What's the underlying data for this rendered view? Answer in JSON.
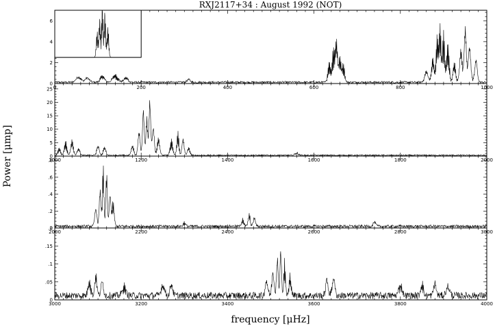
{
  "chart_data": {
    "type": "line",
    "title": "RXJ2117+34 :  August 1992 (NOT)",
    "xlabel": "frequency [μHz]",
    "ylabel": "Power [μmp]",
    "grid": false,
    "panels": [
      {
        "name": "panel-1",
        "xlim": [
          0,
          1000
        ],
        "ylim": [
          0,
          7
        ],
        "xticks": [
          0,
          200,
          400,
          600,
          800,
          1000
        ],
        "yticks": [
          0,
          2,
          4,
          6
        ],
        "ytick_labels": [
          "0",
          "2",
          "4",
          "6"
        ],
        "baseline": 0.12,
        "peaks": [
          {
            "f": 55,
            "a": 0.6,
            "w": 6
          },
          {
            "f": 75,
            "a": 0.5,
            "w": 5
          },
          {
            "f": 110,
            "a": 0.7,
            "w": 5
          },
          {
            "f": 140,
            "a": 0.8,
            "w": 6
          },
          {
            "f": 165,
            "a": 0.5,
            "w": 5
          },
          {
            "f": 310,
            "a": 0.3,
            "w": 4
          },
          {
            "f": 635,
            "a": 2.0,
            "w": 3
          },
          {
            "f": 645,
            "a": 3.3,
            "w": 3
          },
          {
            "f": 652,
            "a": 4.2,
            "w": 2.5
          },
          {
            "f": 660,
            "a": 2.5,
            "w": 3
          },
          {
            "f": 668,
            "a": 1.8,
            "w": 3
          },
          {
            "f": 860,
            "a": 1.2,
            "w": 4
          },
          {
            "f": 875,
            "a": 2.5,
            "w": 3
          },
          {
            "f": 885,
            "a": 4.5,
            "w": 2.5
          },
          {
            "f": 892,
            "a": 5.6,
            "w": 2.5
          },
          {
            "f": 900,
            "a": 5.0,
            "w": 2.5
          },
          {
            "f": 910,
            "a": 3.8,
            "w": 3
          },
          {
            "f": 925,
            "a": 2.0,
            "w": 3
          },
          {
            "f": 940,
            "a": 3.5,
            "w": 3
          },
          {
            "f": 950,
            "a": 6.0,
            "w": 2.5
          },
          {
            "f": 960,
            "a": 4.0,
            "w": 3
          },
          {
            "f": 975,
            "a": 2.5,
            "w": 3
          }
        ],
        "inset": {
          "xlim": [
            0,
            200
          ],
          "ylim": [
            2.5,
            7
          ],
          "peaks": [
            {
              "f": 98,
              "a": 2.5,
              "w": 2
            },
            {
              "f": 104,
              "a": 3.8,
              "w": 1.8
            },
            {
              "f": 110,
              "a": 6.2,
              "w": 1.5
            },
            {
              "f": 116,
              "a": 4.5,
              "w": 1.8
            },
            {
              "f": 123,
              "a": 3.0,
              "w": 2
            }
          ]
        }
      },
      {
        "name": "panel-2",
        "xlim": [
          1000,
          2000
        ],
        "ylim": [
          0,
          27
        ],
        "xticks": [
          1000,
          1200,
          1400,
          1600,
          1800,
          2000
        ],
        "yticks": [
          0,
          5,
          10,
          15,
          20,
          25
        ],
        "ytick_labels": [
          "0",
          "5",
          "10",
          "15",
          "20",
          "25"
        ],
        "baseline": 0.3,
        "peaks": [
          {
            "f": 1010,
            "a": 3,
            "w": 3
          },
          {
            "f": 1025,
            "a": 5.5,
            "w": 3
          },
          {
            "f": 1040,
            "a": 6,
            "w": 3
          },
          {
            "f": 1055,
            "a": 3,
            "w": 3
          },
          {
            "f": 1100,
            "a": 4,
            "w": 3
          },
          {
            "f": 1115,
            "a": 3.5,
            "w": 3
          },
          {
            "f": 1180,
            "a": 4,
            "w": 3
          },
          {
            "f": 1195,
            "a": 10,
            "w": 2.5
          },
          {
            "f": 1205,
            "a": 20,
            "w": 2
          },
          {
            "f": 1213,
            "a": 16,
            "w": 2
          },
          {
            "f": 1220,
            "a": 24,
            "w": 2
          },
          {
            "f": 1228,
            "a": 12,
            "w": 2.5
          },
          {
            "f": 1240,
            "a": 7,
            "w": 3
          },
          {
            "f": 1270,
            "a": 6,
            "w": 3
          },
          {
            "f": 1285,
            "a": 9,
            "w": 2.5
          },
          {
            "f": 1297,
            "a": 7,
            "w": 2.5
          },
          {
            "f": 1310,
            "a": 3,
            "w": 3
          },
          {
            "f": 1560,
            "a": 1,
            "w": 4
          }
        ]
      },
      {
        "name": "panel-3",
        "xlim": [
          2000,
          3000
        ],
        "ylim": [
          0,
          0.85
        ],
        "xticks": [
          2000,
          2200,
          2400,
          2600,
          2800,
          3000
        ],
        "yticks": [
          0,
          0.2,
          0.4,
          0.6,
          0.8
        ],
        "ytick_labels": [
          "0",
          ".2",
          ".4",
          ".6",
          ".8"
        ],
        "baseline": 0.02,
        "peaks": [
          {
            "f": 2095,
            "a": 0.25,
            "w": 2.5
          },
          {
            "f": 2105,
            "a": 0.5,
            "w": 2
          },
          {
            "f": 2112,
            "a": 0.78,
            "w": 1.8
          },
          {
            "f": 2120,
            "a": 0.7,
            "w": 1.8
          },
          {
            "f": 2128,
            "a": 0.45,
            "w": 2
          },
          {
            "f": 2135,
            "a": 0.3,
            "w": 2.5
          },
          {
            "f": 2300,
            "a": 0.05,
            "w": 3
          },
          {
            "f": 2435,
            "a": 0.1,
            "w": 2.5
          },
          {
            "f": 2450,
            "a": 0.15,
            "w": 2.5
          },
          {
            "f": 2462,
            "a": 0.12,
            "w": 2.5
          },
          {
            "f": 2740,
            "a": 0.06,
            "w": 3
          }
        ]
      },
      {
        "name": "panel-4",
        "xlim": [
          3000,
          4000
        ],
        "ylim": [
          0,
          0.2
        ],
        "xticks": [
          3000,
          3200,
          3400,
          3600,
          3800,
          4000
        ],
        "yticks": [
          0,
          0.05,
          0.1,
          0.15,
          0.2
        ],
        "ytick_labels": [
          "0",
          ".05",
          ".1",
          ".15",
          ".2"
        ],
        "baseline": 0.012,
        "peaks": [
          {
            "f": 3080,
            "a": 0.05,
            "w": 3
          },
          {
            "f": 3095,
            "a": 0.065,
            "w": 2.5
          },
          {
            "f": 3110,
            "a": 0.045,
            "w": 3
          },
          {
            "f": 3160,
            "a": 0.03,
            "w": 4
          },
          {
            "f": 3250,
            "a": 0.035,
            "w": 4
          },
          {
            "f": 3270,
            "a": 0.04,
            "w": 3
          },
          {
            "f": 3490,
            "a": 0.05,
            "w": 3
          },
          {
            "f": 3505,
            "a": 0.08,
            "w": 2.5
          },
          {
            "f": 3515,
            "a": 0.12,
            "w": 2
          },
          {
            "f": 3523,
            "a": 0.15,
            "w": 1.8
          },
          {
            "f": 3532,
            "a": 0.1,
            "w": 2
          },
          {
            "f": 3545,
            "a": 0.06,
            "w": 2.5
          },
          {
            "f": 3630,
            "a": 0.05,
            "w": 3
          },
          {
            "f": 3645,
            "a": 0.06,
            "w": 3
          },
          {
            "f": 3800,
            "a": 0.035,
            "w": 4
          },
          {
            "f": 3850,
            "a": 0.04,
            "w": 3
          },
          {
            "f": 3880,
            "a": 0.04,
            "w": 3
          },
          {
            "f": 3910,
            "a": 0.03,
            "w": 4
          }
        ]
      }
    ]
  }
}
